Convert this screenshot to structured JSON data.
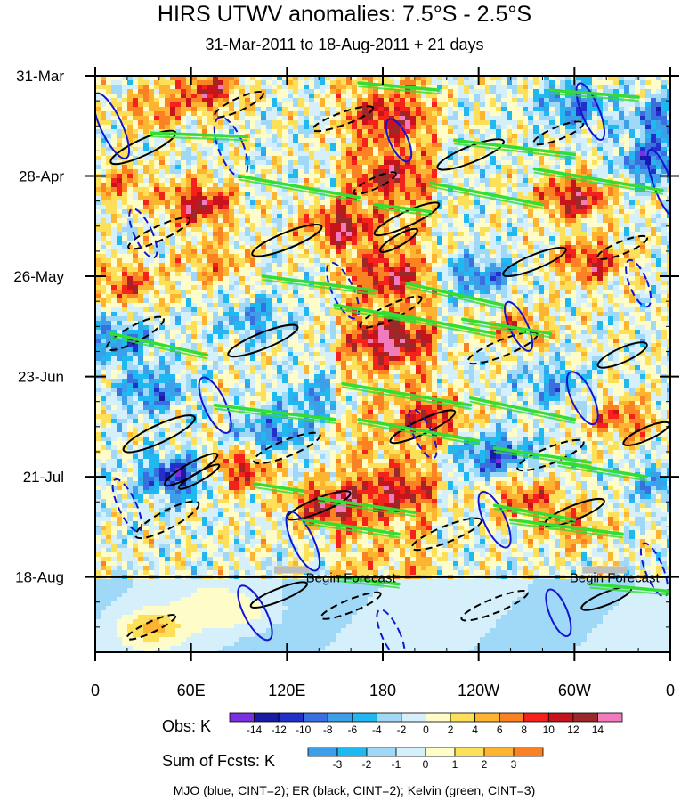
{
  "chart_data": {
    "type": "heatmap",
    "title": "HIRS UTWV anomalies: 7.5°S - 2.5°S",
    "subtitle": "31-Mar-2011 to 18-Aug-2011 + 21 days",
    "x_axis": {
      "ticks": [
        "0",
        "60E",
        "120E",
        "180",
        "120W",
        "60W",
        "0"
      ],
      "tick_longitudes": [
        0,
        60,
        120,
        180,
        240,
        300,
        360
      ],
      "range": [
        0,
        360
      ]
    },
    "y_axis": {
      "ticks": [
        "31-Mar",
        "28-Apr",
        "26-May",
        "23-Jun",
        "21-Jul",
        "18-Aug"
      ],
      "tick_days": [
        0,
        28,
        56,
        84,
        112,
        140
      ],
      "range": [
        0,
        161
      ],
      "reversed": true
    },
    "forecast": {
      "start_day": 140,
      "label_left": "Begin Forecast",
      "label_right": "Begin Forecast",
      "label_left_lon": 160,
      "label_right_lon": 325
    },
    "obs_colorbar": {
      "label": "Obs: K",
      "ticks": [
        "-14",
        "-12",
        "-10",
        "-8",
        "-6",
        "-4",
        "-2",
        "0",
        "2",
        "4",
        "6",
        "8",
        "10",
        "12",
        "14"
      ],
      "colors": [
        "#7b2fe0",
        "#1a1aa6",
        "#2030c8",
        "#3a6fe0",
        "#3d9fe8",
        "#20b8f0",
        "#a0d8f8",
        "#d6f0fb",
        "#fefcc8",
        "#fde05a",
        "#fdb531",
        "#fb8222",
        "#f5221c",
        "#c7141c",
        "#9a2a2a",
        "#f27bbd"
      ]
    },
    "fcst_colorbar": {
      "label": "Sum of Fcsts: K",
      "ticks": [
        "-3",
        "-2",
        "-1",
        "0",
        "1",
        "2",
        "3"
      ],
      "colors": [
        "#3d9fe8",
        "#20b8f0",
        "#a0d8f8",
        "#d6f0fb",
        "#fefcc8",
        "#fde05a",
        "#fdb531",
        "#fb8222"
      ]
    },
    "legend_text": "MJO (blue, CINT=2); ER (black, CINT=2); Kelvin (green, CINT=3)",
    "series": [
      {
        "name": "MJO",
        "color": "#1414d2",
        "contour_interval": 2
      },
      {
        "name": "ER",
        "color": "#000000",
        "contour_interval": 2
      },
      {
        "name": "Kelvin",
        "color": "#33dd33",
        "contour_interval": 3
      }
    ],
    "anomaly_features": [
      {
        "lon": 70,
        "day": 4,
        "value": 10
      },
      {
        "lon": 185,
        "day": 12,
        "value": 8
      },
      {
        "lon": 35,
        "day": 10,
        "value": 6
      },
      {
        "lon": 300,
        "day": 8,
        "value": -8
      },
      {
        "lon": 355,
        "day": 12,
        "value": -8
      },
      {
        "lon": 15,
        "day": 30,
        "value": 6
      },
      {
        "lon": 65,
        "day": 36,
        "value": 12
      },
      {
        "lon": 150,
        "day": 42,
        "value": 10
      },
      {
        "lon": 185,
        "day": 28,
        "value": 8
      },
      {
        "lon": 300,
        "day": 34,
        "value": 12
      },
      {
        "lon": 350,
        "day": 24,
        "value": -10
      },
      {
        "lon": 20,
        "day": 58,
        "value": 8
      },
      {
        "lon": 75,
        "day": 52,
        "value": 6
      },
      {
        "lon": 185,
        "day": 56,
        "value": 8
      },
      {
        "lon": 240,
        "day": 56,
        "value": -8
      },
      {
        "lon": 310,
        "day": 52,
        "value": 10
      },
      {
        "lon": 15,
        "day": 74,
        "value": -8
      },
      {
        "lon": 100,
        "day": 68,
        "value": -6
      },
      {
        "lon": 185,
        "day": 74,
        "value": 12
      },
      {
        "lon": 265,
        "day": 70,
        "value": 6
      },
      {
        "lon": 215,
        "day": 96,
        "value": 8
      },
      {
        "lon": 330,
        "day": 96,
        "value": 8
      },
      {
        "lon": 35,
        "day": 88,
        "value": -8
      },
      {
        "lon": 110,
        "day": 100,
        "value": -8
      },
      {
        "lon": 50,
        "day": 112,
        "value": -12
      },
      {
        "lon": 90,
        "day": 110,
        "value": 10
      },
      {
        "lon": 145,
        "day": 120,
        "value": 12
      },
      {
        "lon": 190,
        "day": 116,
        "value": 8
      },
      {
        "lon": 270,
        "day": 118,
        "value": 8
      },
      {
        "lon": 300,
        "day": 126,
        "value": 6
      },
      {
        "lon": 355,
        "day": 114,
        "value": -6
      },
      {
        "lon": 140,
        "day": 90,
        "value": -6
      },
      {
        "lon": 285,
        "day": 86,
        "value": -6
      },
      {
        "lon": 250,
        "day": 106,
        "value": -10
      }
    ]
  }
}
